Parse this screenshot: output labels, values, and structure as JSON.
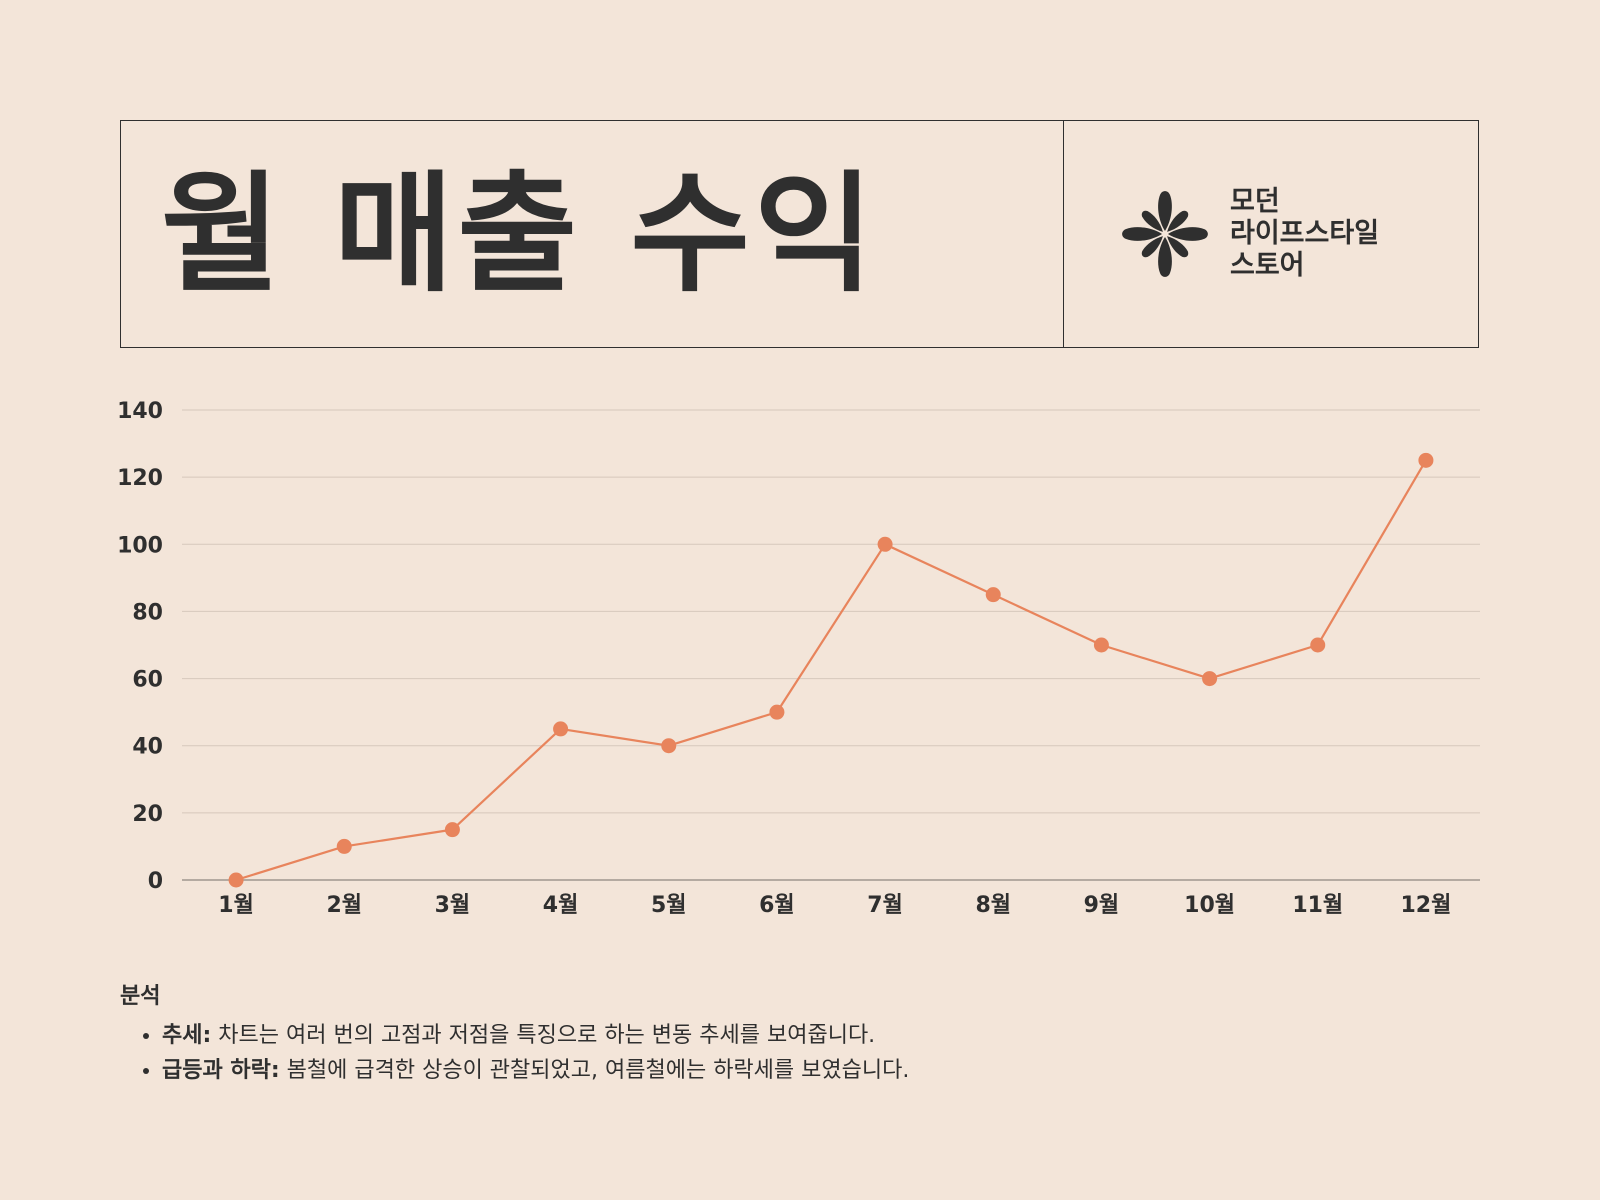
{
  "header": {
    "title": "월 매출 수익",
    "brand_lines": [
      "모던",
      "라이프스타일",
      "스토어"
    ]
  },
  "colors": {
    "background": "#f3e5d9",
    "text": "#2f2f2f",
    "line": "#e8845c",
    "grid": "#d6c8bc"
  },
  "chart_data": {
    "type": "line",
    "categories": [
      "1월",
      "2월",
      "3월",
      "4월",
      "5월",
      "6월",
      "7월",
      "8월",
      "9월",
      "10월",
      "11월",
      "12월"
    ],
    "series": [
      {
        "values": [
          0,
          10,
          15,
          45,
          40,
          50,
          100,
          85,
          70,
          60,
          70,
          125
        ]
      }
    ],
    "title": "",
    "xlabel": "",
    "ylabel": "",
    "ylim": [
      0,
      140
    ],
    "yticks": [
      0,
      20,
      40,
      60,
      80,
      100,
      120,
      140
    ],
    "grid": true,
    "legend": "none",
    "markers": true
  },
  "analysis": {
    "heading": "분석",
    "items": [
      {
        "label": "추세:",
        "text": "차트는 여러 번의 고점과 저점을 특징으로 하는 변동 추세를 보여줍니다."
      },
      {
        "label": "급등과 하락:",
        "text": "봄철에 급격한 상승이 관찰되었고, 여름철에는 하락세를 보였습니다."
      }
    ]
  }
}
